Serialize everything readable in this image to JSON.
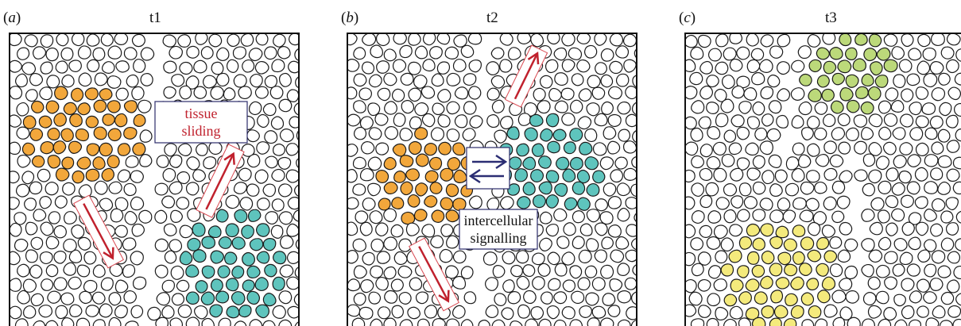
{
  "panels": [
    {
      "label_prefix": "(",
      "label_letter": "a",
      "label_suffix": ")",
      "title": "t1"
    },
    {
      "label_prefix": "(",
      "label_letter": "b",
      "label_suffix": ")",
      "title": "t2"
    },
    {
      "label_prefix": "(",
      "label_letter": "c",
      "label_suffix": ")",
      "title": "t3"
    }
  ],
  "annotations": {
    "sliding_line1": "tissue",
    "sliding_line2": "sliding",
    "signalling_line1": "intercellular",
    "signalling_line2": "signalling"
  },
  "colors": {
    "orange_cells": "#f2a73b",
    "teal_cells": "#5ec4bd",
    "lime_cells": "#bcd97a",
    "yellow_cells": "#f4ea7c",
    "sliding_arrow": "#c0212d",
    "signalling_arrow": "#2b2d73"
  }
}
